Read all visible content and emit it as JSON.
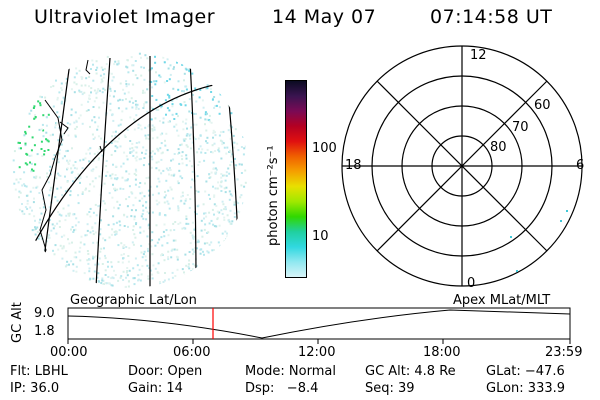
{
  "header": {
    "instrument": "Ultraviolet Imager",
    "date": "14 May 07",
    "time": "07:14:58 UT"
  },
  "colorbar": {
    "unit_label": "photon cm⁻²s⁻¹",
    "ticks": [
      "100",
      "10"
    ],
    "colors": [
      "#0b0b22",
      "#3a1450",
      "#7a0a55",
      "#b40022",
      "#e01010",
      "#f06000",
      "#f5a000",
      "#e8e000",
      "#a0e800",
      "#30d800",
      "#20d0a0",
      "#30d8e0",
      "#90e8f0",
      "#d8f4f8"
    ]
  },
  "polar_plot": {
    "mlt_labels": [
      "12",
      "18",
      "6",
      "0"
    ],
    "lat_labels": [
      "60",
      "70",
      "80"
    ]
  },
  "orbit_panel": {
    "left_label": "Geographic Lat/Lon",
    "right_label": "Apex MLat/MLT",
    "axis_label": "GC Alt",
    "y_ticks": [
      "9.0",
      "1.8"
    ],
    "x_ticks": [
      "00:00",
      "06:00",
      "12:00",
      "18:00",
      "23:59"
    ],
    "current_marker_color": "#ff0000"
  },
  "footer": {
    "row1": [
      "Flt: LBHL",
      "Door: Open",
      "Mode: Normal",
      "GC Alt: 4.8 Re",
      "GLat: −47.6"
    ],
    "row2": [
      "IP: 36.0",
      "Gain: 14",
      "Dsp:   −8.4",
      "Seq: 39",
      "GLon: 333.9"
    ]
  }
}
